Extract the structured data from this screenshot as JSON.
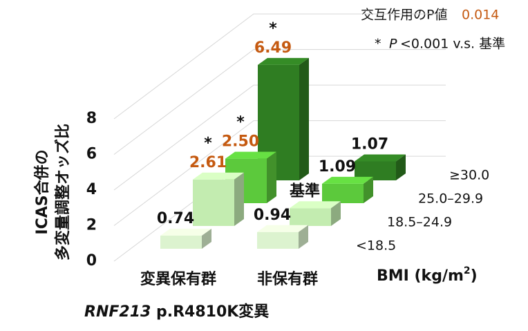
{
  "chart_data": {
    "type": "bar3d",
    "y_title": [
      "ICAS合併の",
      "多変量調整オッズ比"
    ],
    "interaction_label": "交互作用のP値",
    "interaction_p": 0.014,
    "star": "*",
    "footnote": [
      "P",
      "<0.001 v.s. 基準"
    ],
    "categories": [
      "変異保有群",
      "非保有群"
    ],
    "category_colors": [
      "#c00000",
      "#111111"
    ],
    "x_title": [
      "RNF213",
      " p.R4810K変異"
    ],
    "z_title": [
      "BMI (kg/m",
      "2",
      ")"
    ],
    "highlight_color": "#c55a11",
    "series": [
      {
        "name": "<18.5",
        "color": "#dcf3cf",
        "values": [
          0.74,
          0.94
        ],
        "significant": [
          false,
          false
        ]
      },
      {
        "name": "18.5–24.9",
        "color": "#c3ecb0",
        "values": [
          2.61,
          1
        ],
        "value_labels": [
          "2.61",
          "基準"
        ],
        "significant": [
          true,
          false
        ]
      },
      {
        "name": "25.0–29.9",
        "color": "#5cc93c",
        "values": [
          2.5,
          1.09
        ],
        "value_labels": [
          "2.50",
          "1.09"
        ],
        "significant": [
          true,
          false
        ]
      },
      {
        "name": "≥30.0",
        "color": "#2f7d22",
        "values": [
          6.49,
          1.07
        ],
        "value_labels": [
          "6.49",
          "1.07"
        ],
        "significant": [
          true,
          false
        ]
      }
    ],
    "ylim": [
      0,
      8
    ],
    "yticks": [
      0,
      2,
      4,
      6,
      8
    ],
    "grid": true
  }
}
